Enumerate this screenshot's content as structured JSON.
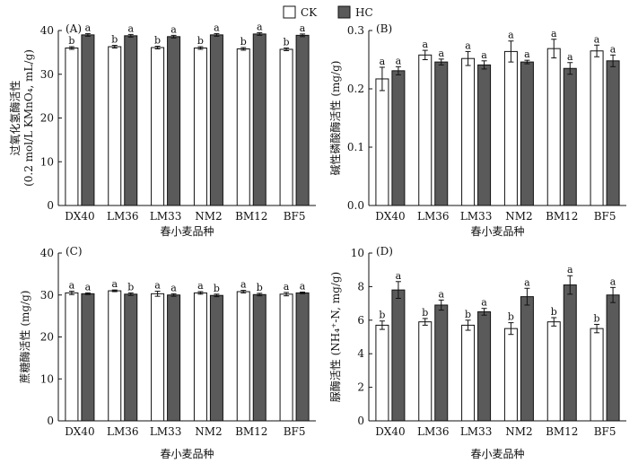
{
  "legend": {
    "items": [
      {
        "label": "CK",
        "color": "#ffffff"
      },
      {
        "label": "HC",
        "color": "#5a5a5a"
      }
    ]
  },
  "colors": {
    "ck": "#ffffff",
    "hc": "#5a5a5a",
    "axis": "#111111"
  },
  "chart_data": [
    {
      "type": "bar",
      "panel": "(A)",
      "ylabel_line1": "过氧化氢酶活性",
      "ylabel_line2": "(0.2 mol/L KMnO₄, mL/g)",
      "xlabel": "春小麦品种",
      "categories": [
        "DX40",
        "LM36",
        "LM33",
        "NM2",
        "BM12",
        "BF5"
      ],
      "ylim": [
        0,
        40
      ],
      "yticks": [
        "0",
        "10",
        "20",
        "30",
        "40"
      ],
      "series": [
        {
          "name": "CK",
          "values": [
            36.0,
            36.3,
            36.1,
            36.0,
            35.8,
            35.7
          ],
          "errors": [
            0.3,
            0.3,
            0.3,
            0.3,
            0.3,
            0.3
          ],
          "labels": [
            "b",
            "b",
            "b",
            "b",
            "b",
            "b"
          ]
        },
        {
          "name": "HC",
          "values": [
            39.0,
            38.8,
            38.6,
            39.0,
            39.2,
            38.9
          ],
          "errors": [
            0.3,
            0.3,
            0.3,
            0.3,
            0.3,
            0.3
          ],
          "labels": [
            "a",
            "a",
            "a",
            "a",
            "a",
            "a"
          ]
        }
      ]
    },
    {
      "type": "bar",
      "panel": "(B)",
      "ylabel_line1": "碱性磷酸酶活性 (mg/g)",
      "ylabel_line2": "",
      "xlabel": "春小麦品种",
      "categories": [
        "DX40",
        "LM36",
        "LM33",
        "NM2",
        "BM12",
        "BF5"
      ],
      "ylim": [
        0,
        0.3
      ],
      "yticks": [
        "0.0",
        "0.1",
        "0.2",
        "0.3"
      ],
      "series": [
        {
          "name": "CK",
          "values": [
            0.217,
            0.258,
            0.252,
            0.264,
            0.269,
            0.265
          ],
          "errors": [
            0.02,
            0.008,
            0.012,
            0.018,
            0.016,
            0.01
          ],
          "labels": [
            "a",
            "a",
            "a",
            "a",
            "a",
            "a"
          ]
        },
        {
          "name": "HC",
          "values": [
            0.231,
            0.246,
            0.241,
            0.246,
            0.235,
            0.248
          ],
          "errors": [
            0.007,
            0.005,
            0.007,
            0.003,
            0.01,
            0.01
          ],
          "labels": [
            "a",
            "a",
            "a",
            "a",
            "a",
            "a"
          ]
        }
      ]
    },
    {
      "type": "bar",
      "panel": "(C)",
      "ylabel_line1": "蔗糖酶活性 (mg/g)",
      "ylabel_line2": "",
      "xlabel": "春小麦品种",
      "categories": [
        "DX40",
        "LM36",
        "LM33",
        "NM2",
        "BM12",
        "BF5"
      ],
      "ylim": [
        0,
        40
      ],
      "yticks": [
        "0",
        "10",
        "20",
        "30",
        "40"
      ],
      "series": [
        {
          "name": "CK",
          "values": [
            30.5,
            31.0,
            30.3,
            30.5,
            30.8,
            30.2
          ],
          "errors": [
            0.4,
            0.2,
            0.6,
            0.3,
            0.3,
            0.4
          ],
          "labels": [
            "a",
            "a",
            "a",
            "a",
            "a",
            "a"
          ]
        },
        {
          "name": "HC",
          "values": [
            30.3,
            30.2,
            30.0,
            29.9,
            30.1,
            30.5
          ],
          "errors": [
            0.2,
            0.3,
            0.3,
            0.3,
            0.3,
            0.2
          ],
          "labels": [
            "a",
            "b",
            "a",
            "b",
            "b",
            "a"
          ]
        }
      ]
    },
    {
      "type": "bar",
      "panel": "(D)",
      "ylabel_line1": "脲酶活性 (NH₄⁺-N, mg/g)",
      "ylabel_line2": "",
      "xlabel": "春小麦品种",
      "categories": [
        "DX40",
        "LM36",
        "LM33",
        "NM2",
        "BM12",
        "BF5"
      ],
      "ylim": [
        0,
        10
      ],
      "yticks": [
        "0",
        "2",
        "4",
        "6",
        "8",
        "10"
      ],
      "series": [
        {
          "name": "CK",
          "values": [
            5.7,
            5.9,
            5.7,
            5.5,
            5.9,
            5.5
          ],
          "errors": [
            0.25,
            0.2,
            0.3,
            0.35,
            0.25,
            0.25
          ],
          "labels": [
            "b",
            "b",
            "b",
            "b",
            "b",
            "b"
          ]
        },
        {
          "name": "HC",
          "values": [
            7.8,
            6.9,
            6.5,
            7.4,
            8.1,
            7.5
          ],
          "errors": [
            0.5,
            0.3,
            0.2,
            0.5,
            0.55,
            0.45
          ],
          "labels": [
            "a",
            "a",
            "a",
            "a",
            "a",
            "a"
          ]
        }
      ]
    }
  ]
}
